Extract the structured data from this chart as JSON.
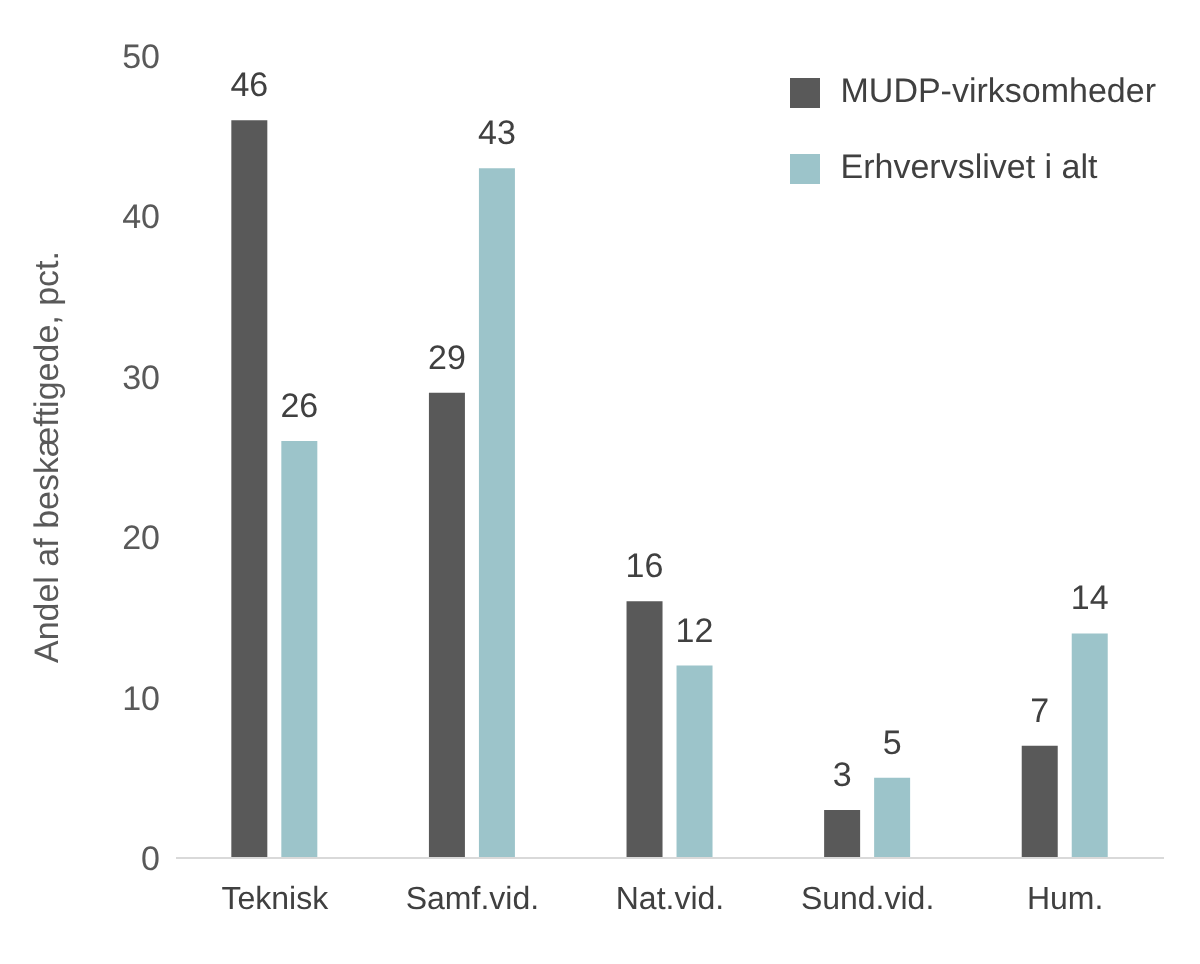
{
  "chart_data": {
    "type": "bar",
    "ylabel": "Andel af beskæftigede, pct.",
    "categories": [
      "Teknisk",
      "Samf.vid.",
      "Nat.vid.",
      "Sund.vid.",
      "Hum."
    ],
    "series": [
      {
        "name": "MUDP-virksomheder",
        "color": "#595959",
        "values": [
          46,
          29,
          16,
          3,
          7
        ]
      },
      {
        "name": "Erhvervslivet i alt",
        "color": "#9cc4ca",
        "values": [
          26,
          43,
          12,
          5,
          14
        ]
      }
    ],
    "ylim": [
      0,
      50
    ],
    "yticks": [
      0,
      10,
      20,
      30,
      40,
      50
    ],
    "grid": false,
    "legend": "top right",
    "data_labels": true
  }
}
